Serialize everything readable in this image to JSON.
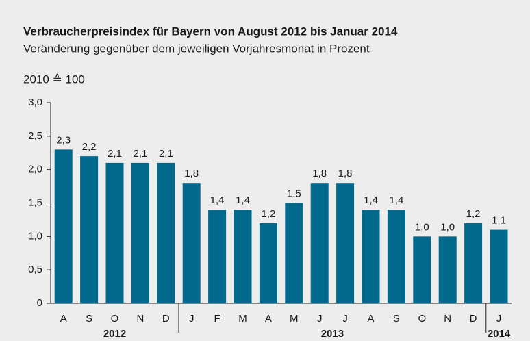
{
  "chart_data": {
    "type": "bar",
    "title": "Verbraucherpreisindex für Bayern von August 2012 bis Januar 2014",
    "subtitle": "Veränderung gegenüber dem jeweiligen Vorjahresmonat in Prozent",
    "note": "2010 ≙ 100",
    "categories": [
      "A",
      "S",
      "O",
      "N",
      "D",
      "J",
      "F",
      "M",
      "A",
      "M",
      "J",
      "J",
      "A",
      "S",
      "O",
      "N",
      "D",
      "J"
    ],
    "values": [
      2.3,
      2.2,
      2.1,
      2.1,
      2.1,
      1.8,
      1.4,
      1.4,
      1.2,
      1.5,
      1.8,
      1.8,
      1.4,
      1.4,
      1.0,
      1.0,
      1.2,
      1.1
    ],
    "value_labels": [
      "2,3",
      "2,2",
      "2,1",
      "2,1",
      "2,1",
      "1,8",
      "1,4",
      "1,4",
      "1,2",
      "1,5",
      "1,8",
      "1,8",
      "1,4",
      "1,4",
      "1,0",
      "1,0",
      "1,2",
      "1,1"
    ],
    "groups": [
      {
        "name": "2012",
        "size": 5
      },
      {
        "name": "2013",
        "size": 12
      },
      {
        "name": "2014",
        "size": 1
      }
    ],
    "color": "#00698c",
    "ylim": [
      0,
      3
    ],
    "yticks": [
      0,
      {
        "value": 0.5,
        "label": "0,5"
      },
      {
        "value": 1,
        "label": "1,0"
      },
      {
        "value": 1.5,
        "label": "1,5"
      },
      {
        "value": 2,
        "label": "2,0"
      },
      {
        "value": 2.5,
        "label": "2,5"
      },
      {
        "value": 3,
        "label": "3,0"
      }
    ]
  }
}
